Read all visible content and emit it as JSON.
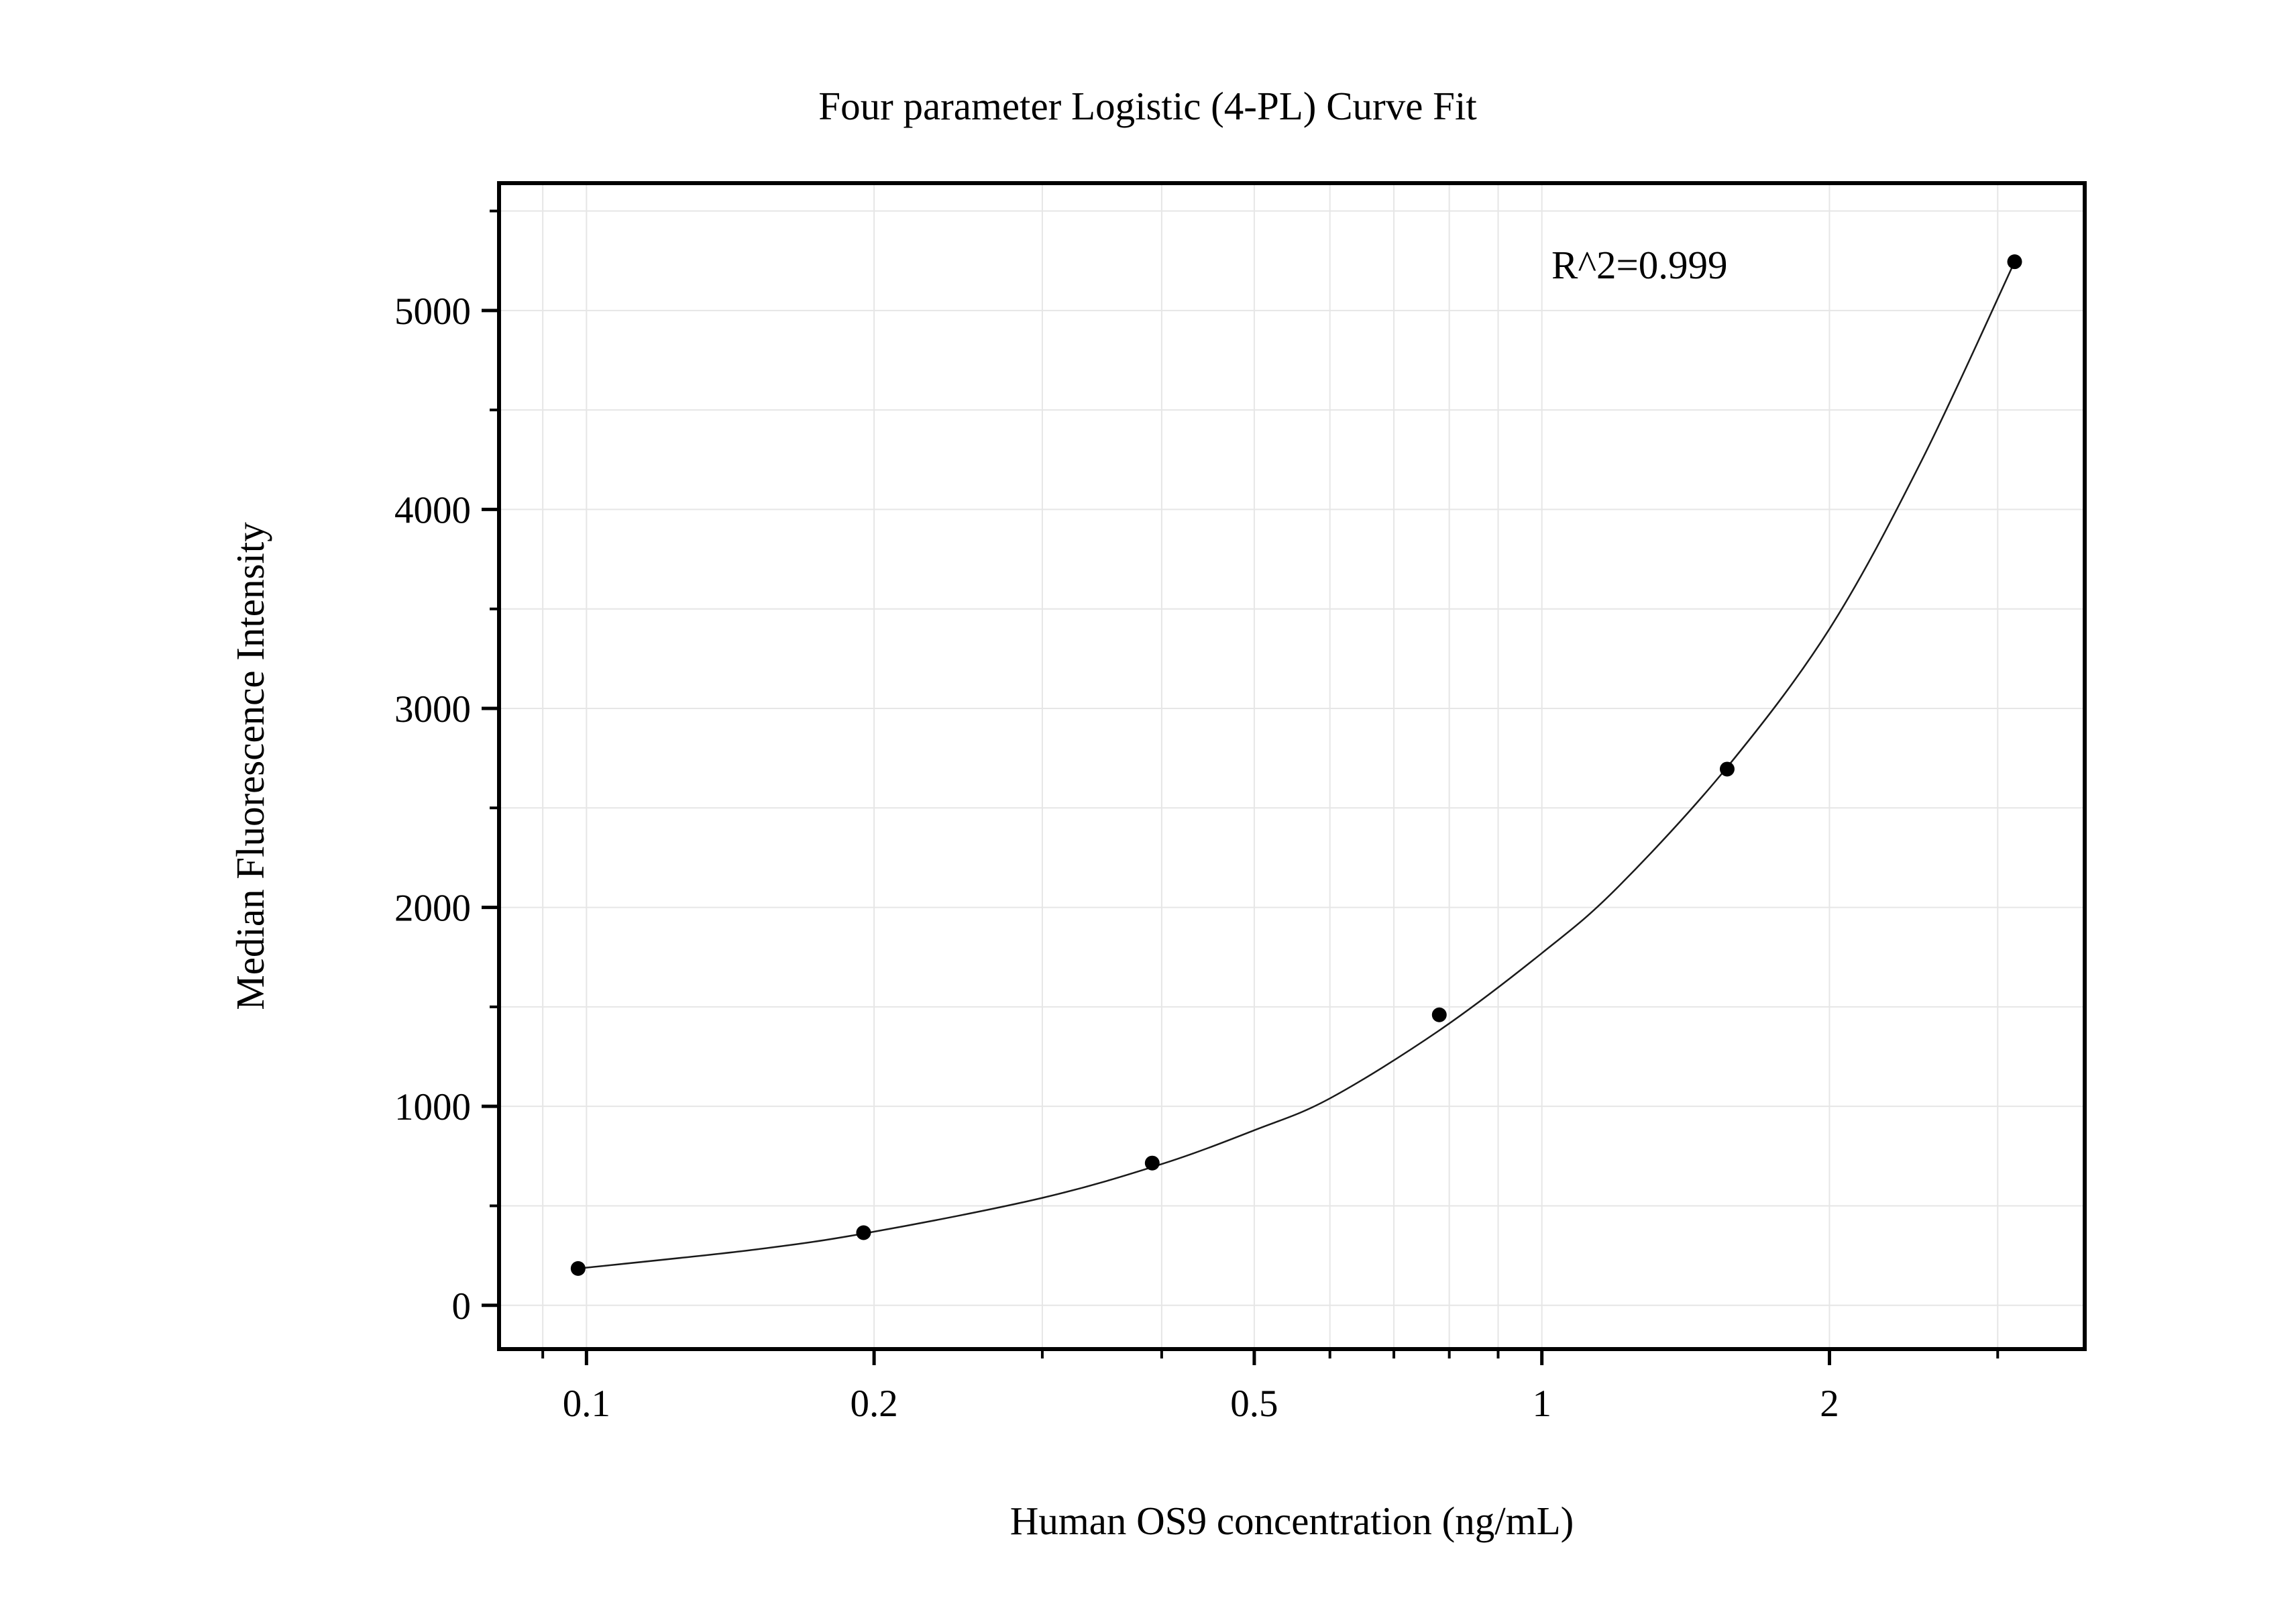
{
  "chart_data": {
    "type": "scatter",
    "title": "Four parameter Logistic (4-PL) Curve Fit",
    "xlabel": "Human OS9 concentration (ng/mL)",
    "ylabel": "Median Fluorescence Intensity",
    "x_scale": "log",
    "xlim": [
      0.081,
      3.7
    ],
    "ylim": [
      -220,
      5640
    ],
    "x_ticks": [
      {
        "value": 0.1,
        "label": "0.1"
      },
      {
        "value": 0.2,
        "label": "0.2"
      },
      {
        "value": 0.5,
        "label": "0.5"
      },
      {
        "value": 1,
        "label": "1"
      },
      {
        "value": 2,
        "label": "2"
      }
    ],
    "y_ticks": [
      {
        "value": 0,
        "label": "0"
      },
      {
        "value": 1000,
        "label": "1000"
      },
      {
        "value": 2000,
        "label": "2000"
      },
      {
        "value": 3000,
        "label": "3000"
      },
      {
        "value": 4000,
        "label": "4000"
      },
      {
        "value": 5000,
        "label": "5000"
      }
    ],
    "grid": true,
    "points": {
      "x": [
        0.098,
        0.195,
        0.391,
        0.781,
        1.563,
        3.125
      ],
      "y": [
        185,
        365,
        715,
        1460,
        2695,
        5245
      ]
    },
    "fit_curve": {
      "x": [
        0.098,
        0.15,
        0.2,
        0.3,
        0.4,
        0.5,
        0.6,
        0.78,
        1.0,
        1.2,
        1.56,
        2.0,
        2.5,
        3.125
      ],
      "y": [
        185,
        280,
        370,
        540,
        710,
        880,
        1040,
        1380,
        1770,
        2100,
        2700,
        3400,
        4250,
        5245
      ]
    },
    "annotation": "R^2=0.999"
  }
}
